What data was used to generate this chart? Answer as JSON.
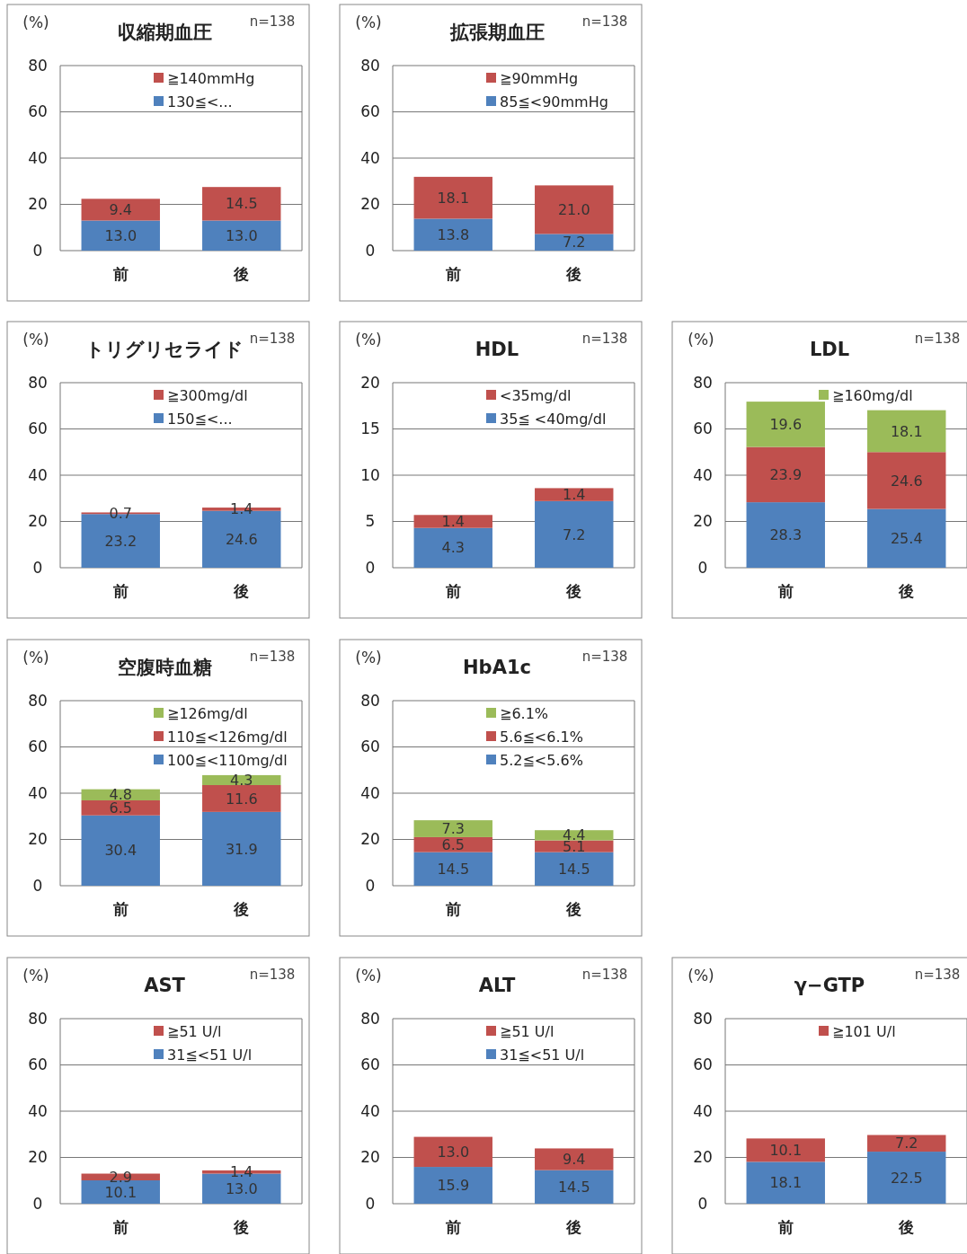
{
  "chart_data": [
    {
      "type": "bar",
      "title": "収縮期血圧",
      "ylabel": "(%)",
      "annotations": [
        "n=138"
      ],
      "categories": [
        "前",
        "後"
      ],
      "stacked": true,
      "grid": "y",
      "legend": "top right",
      "ylim": [
        0,
        80
      ],
      "yticks": [
        0,
        20,
        40,
        60,
        80
      ],
      "series": [
        {
          "name": "130≦<...",
          "color": "#4f81bd",
          "values": [
            13.0,
            13.0
          ],
          "value_labels": [
            "13.0",
            "13.0"
          ]
        },
        {
          "name": "≧140mmHg",
          "color": "#c0504d",
          "values": [
            9.4,
            14.5
          ],
          "value_labels": [
            "9.4",
            "14.5"
          ]
        }
      ]
    },
    {
      "type": "bar",
      "title": "拡張期血圧",
      "ylabel": "(%)",
      "annotations": [
        "n=138"
      ],
      "categories": [
        "前",
        "後"
      ],
      "stacked": true,
      "grid": "y",
      "legend": "top right",
      "ylim": [
        0,
        80
      ],
      "yticks": [
        0,
        20,
        40,
        60,
        80
      ],
      "series": [
        {
          "name": "85≦<90mmHg",
          "color": "#4f81bd",
          "values": [
            13.8,
            7.2
          ],
          "value_labels": [
            "13.8",
            "7.2"
          ]
        },
        {
          "name": "≧90mmHg",
          "color": "#c0504d",
          "values": [
            18.1,
            21.0
          ],
          "value_labels": [
            "18.1",
            "21.0"
          ]
        }
      ]
    },
    {
      "type": "bar",
      "title": "トリグリセライド",
      "ylabel": "(%)",
      "annotations": [
        "n=138"
      ],
      "categories": [
        "前",
        "後"
      ],
      "stacked": true,
      "grid": "y",
      "legend": "top right",
      "ylim": [
        0,
        80
      ],
      "yticks": [
        0,
        20,
        40,
        60,
        80
      ],
      "series": [
        {
          "name": "150≦<...",
          "color": "#4f81bd",
          "values": [
            23.2,
            24.6
          ],
          "value_labels": [
            "23.2",
            "24.6"
          ]
        },
        {
          "name": "≧300mg/dl",
          "color": "#c0504d",
          "values": [
            0.7,
            1.4
          ],
          "value_labels": [
            "0.7",
            "1.4"
          ]
        }
      ]
    },
    {
      "type": "bar",
      "title": "HDL",
      "ylabel": "(%)",
      "annotations": [
        "n=138"
      ],
      "categories": [
        "前",
        "後"
      ],
      "stacked": true,
      "grid": "y",
      "legend": "top right",
      "ylim": [
        0,
        20
      ],
      "yticks": [
        0,
        5,
        10,
        15,
        20
      ],
      "series": [
        {
          "name": "35≦ <40mg/dl",
          "color": "#4f81bd",
          "values": [
            4.3,
            7.2
          ],
          "value_labels": [
            "4.3",
            "7.2"
          ]
        },
        {
          "name": "<35mg/dl",
          "color": "#c0504d",
          "values": [
            1.4,
            1.4
          ],
          "value_labels": [
            "1.4",
            "1.4"
          ]
        }
      ]
    },
    {
      "type": "bar",
      "title": "LDL",
      "ylabel": "(%)",
      "annotations": [
        "n=138"
      ],
      "categories": [
        "前",
        "後"
      ],
      "stacked": true,
      "grid": "y",
      "legend": "top right",
      "ylim": [
        0,
        80
      ],
      "yticks": [
        0,
        20,
        40,
        60,
        80
      ],
      "series": [
        {
          "color": "#4f81bd",
          "values": [
            28.3,
            25.4
          ],
          "value_labels": [
            "28.3",
            "25.4"
          ]
        },
        {
          "color": "#c0504d",
          "values": [
            23.9,
            24.6
          ],
          "value_labels": [
            "23.9",
            "24.6"
          ]
        },
        {
          "name": "≧160mg/dl",
          "color": "#9bbb59",
          "values": [
            19.6,
            18.1
          ],
          "value_labels": [
            "19.6",
            "18.1"
          ]
        }
      ]
    },
    {
      "type": "bar",
      "title": "空腹時血糖",
      "ylabel": "(%)",
      "annotations": [
        "n=138"
      ],
      "categories": [
        "前",
        "後"
      ],
      "stacked": true,
      "grid": "y",
      "legend": "top right",
      "ylim": [
        0,
        80
      ],
      "yticks": [
        0,
        20,
        40,
        60,
        80
      ],
      "series": [
        {
          "name": "100≦<110mg/dl",
          "color": "#4f81bd",
          "values": [
            30.4,
            31.9
          ],
          "value_labels": [
            "30.4",
            "31.9"
          ]
        },
        {
          "name": "110≦<126mg/dl",
          "color": "#c0504d",
          "values": [
            6.5,
            11.6
          ],
          "value_labels": [
            "6.5",
            "11.6"
          ]
        },
        {
          "name": "≧126mg/dl",
          "color": "#9bbb59",
          "values": [
            4.8,
            4.3
          ],
          "value_labels": [
            "4.8",
            "4.3"
          ]
        }
      ]
    },
    {
      "type": "bar",
      "title": "HbA1c",
      "ylabel": "(%)",
      "annotations": [
        "n=138"
      ],
      "categories": [
        "前",
        "後"
      ],
      "stacked": true,
      "grid": "y",
      "legend": "top right",
      "ylim": [
        0,
        80
      ],
      "yticks": [
        0,
        20,
        40,
        60,
        80
      ],
      "series": [
        {
          "name": "5.2≦<5.6%",
          "color": "#4f81bd",
          "values": [
            14.5,
            14.5
          ],
          "value_labels": [
            "14.5",
            "14.5"
          ]
        },
        {
          "name": "5.6≦<6.1%",
          "color": "#c0504d",
          "values": [
            6.5,
            5.1
          ],
          "value_labels": [
            "6.5",
            "5.1"
          ]
        },
        {
          "name": "≧6.1%",
          "color": "#9bbb59",
          "values": [
            7.3,
            4.4
          ],
          "value_labels": [
            "7.3",
            "4.4"
          ]
        }
      ]
    },
    {
      "type": "bar",
      "title": "AST",
      "ylabel": "(%)",
      "annotations": [
        "n=138"
      ],
      "categories": [
        "前",
        "後"
      ],
      "stacked": true,
      "grid": "y",
      "legend": "top right",
      "ylim": [
        0,
        80
      ],
      "yticks": [
        0,
        20,
        40,
        60,
        80
      ],
      "series": [
        {
          "name": "31≦<51 U/l",
          "color": "#4f81bd",
          "values": [
            10.1,
            13.0
          ],
          "value_labels": [
            "10.1",
            "13.0"
          ]
        },
        {
          "name": "≧51 U/l",
          "color": "#c0504d",
          "values": [
            2.9,
            1.4
          ],
          "value_labels": [
            "2.9",
            "1.4"
          ]
        }
      ]
    },
    {
      "type": "bar",
      "title": "ALT",
      "ylabel": "(%)",
      "annotations": [
        "n=138"
      ],
      "categories": [
        "前",
        "後"
      ],
      "stacked": true,
      "grid": "y",
      "legend": "top right",
      "ylim": [
        0,
        80
      ],
      "yticks": [
        0,
        20,
        40,
        60,
        80
      ],
      "series": [
        {
          "name": "31≦<51 U/l",
          "color": "#4f81bd",
          "values": [
            15.9,
            14.5
          ],
          "value_labels": [
            "15.9",
            "14.5"
          ]
        },
        {
          "name": "≧51 U/l",
          "color": "#c0504d",
          "values": [
            13.0,
            9.4
          ],
          "value_labels": [
            "13.0",
            "9.4"
          ]
        }
      ]
    },
    {
      "type": "bar",
      "title": "γ−GTP",
      "ylabel": "(%)",
      "annotations": [
        "n=138"
      ],
      "categories": [
        "前",
        "後"
      ],
      "stacked": true,
      "grid": "y",
      "legend": "top right",
      "ylim": [
        0,
        80
      ],
      "yticks": [
        0,
        20,
        40,
        60,
        80
      ],
      "series": [
        {
          "color": "#4f81bd",
          "values": [
            18.1,
            22.5
          ],
          "value_labels": [
            "18.1",
            "22.5"
          ]
        },
        {
          "name": "≧101 U/l",
          "color": "#c0504d",
          "values": [
            10.1,
            7.2
          ],
          "value_labels": [
            "10.1",
            "7.2"
          ]
        }
      ]
    }
  ]
}
